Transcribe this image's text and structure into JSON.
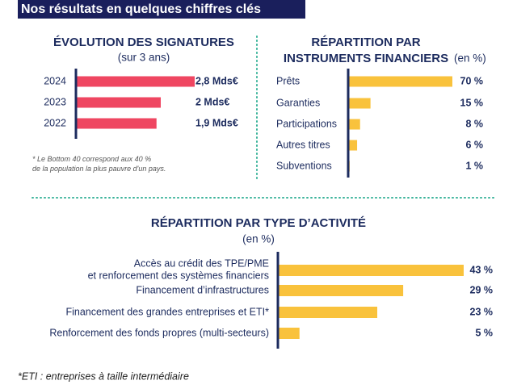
{
  "header": {
    "title": "Nos résultats en quelques chiffres clés"
  },
  "chart_data": [
    {
      "type": "bar",
      "orientation": "horizontal",
      "title": "ÉVOLUTION DES SIGNATURES",
      "subtitle": "(sur 3 ans)",
      "categories": [
        "2024",
        "2023",
        "2022"
      ],
      "values": [
        2.8,
        2,
        1.9
      ],
      "value_labels": [
        "2,8 Mds€",
        "2 Mds€",
        "1,9 Mds€"
      ],
      "color": "#ef4661",
      "note": "* Le Bottom 40 correspond aux 40 %\nde la population la plus pauvre d'un pays."
    },
    {
      "type": "bar",
      "orientation": "horizontal",
      "title": "RÉPARTITION PAR\nINSTRUMENTS FINANCIERS",
      "subtitle": "(en %)",
      "categories": [
        "Prêts",
        "Garanties",
        "Participations",
        "Autres titres",
        "Subventions"
      ],
      "values": [
        70,
        15,
        8,
        6,
        1
      ],
      "value_labels": [
        "70 %",
        "15 %",
        "8 %",
        "6 %",
        "1 %"
      ],
      "color": "#f9c23c"
    },
    {
      "type": "bar",
      "orientation": "horizontal",
      "title": "RÉPARTITION PAR TYPE D’ACTIVITÉ",
      "subtitle": "(en %)",
      "categories": [
        "Accès au crédit des TPE/PME\net renforcement des systèmes financiers",
        "Financement d’infrastructures",
        "Financement des grandes entreprises et ETI*",
        "Renforcement des fonds propres (multi-secteurs)"
      ],
      "values": [
        43,
        29,
        23,
        5
      ],
      "value_labels": [
        "43 %",
        "29 %",
        "23 %",
        "5 %"
      ],
      "color": "#f9c23c"
    }
  ],
  "footnote": "*ETI : entreprises à taille intermédiaire"
}
